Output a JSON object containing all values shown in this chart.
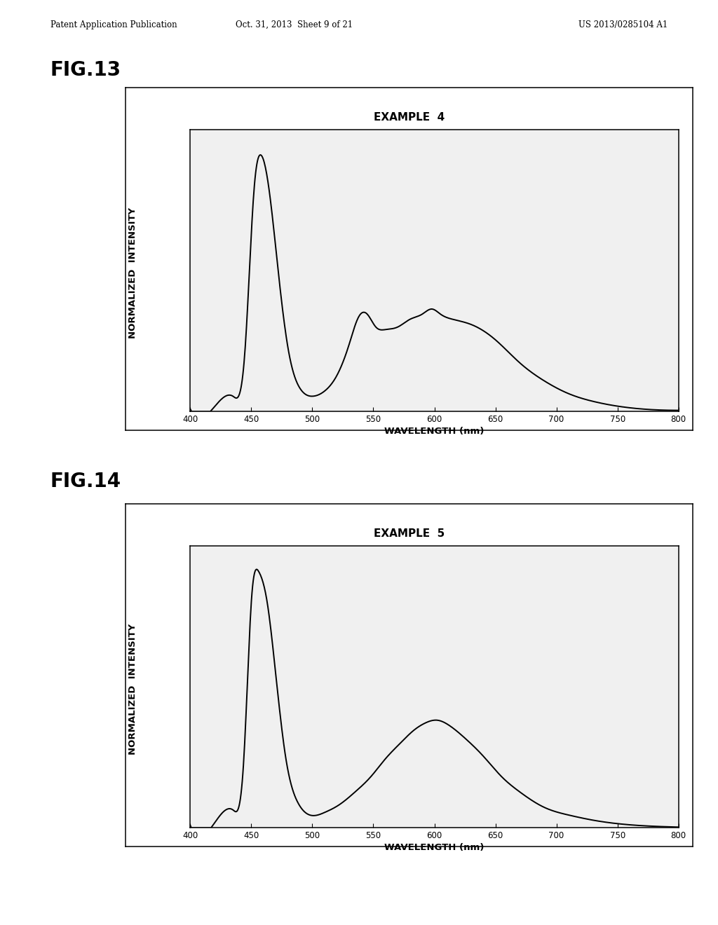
{
  "header_left": "Patent Application Publication",
  "header_center": "Oct. 31, 2013  Sheet 9 of 21",
  "header_right": "US 2013/0285104 A1",
  "fig13_label": "FIG.13",
  "fig14_label": "FIG.14",
  "fig13_title": "EXAMPLE  4",
  "fig14_title": "EXAMPLE  5",
  "xlabel": "WAVELENGTH (nm)",
  "ylabel": "NORMALIZED  INTENSITY",
  "xmin": 400,
  "xmax": 800,
  "xticks": [
    400,
    450,
    500,
    550,
    600,
    650,
    700,
    750,
    800
  ],
  "background_color": "#ffffff",
  "line_color": "#000000",
  "fig13_key_wl": [
    400,
    420,
    435,
    445,
    452,
    458,
    465,
    472,
    480,
    490,
    500,
    510,
    520,
    530,
    538,
    545,
    552,
    560,
    570,
    580,
    590,
    598,
    605,
    615,
    630,
    650,
    670,
    690,
    710,
    730,
    760,
    800
  ],
  "fig13_key_int": [
    0.01,
    0.02,
    0.06,
    0.25,
    0.85,
    1.0,
    0.85,
    0.55,
    0.25,
    0.09,
    0.06,
    0.08,
    0.14,
    0.26,
    0.37,
    0.38,
    0.33,
    0.32,
    0.33,
    0.36,
    0.38,
    0.4,
    0.38,
    0.36,
    0.34,
    0.28,
    0.19,
    0.12,
    0.07,
    0.04,
    0.015,
    0.005
  ],
  "fig14_key_wl": [
    400,
    420,
    435,
    444,
    450,
    456,
    463,
    470,
    478,
    488,
    498,
    510,
    522,
    535,
    548,
    560,
    572,
    583,
    593,
    602,
    612,
    625,
    640,
    655,
    670,
    690,
    710,
    730,
    760,
    800
  ],
  "fig14_key_int": [
    0.01,
    0.02,
    0.07,
    0.28,
    0.88,
    1.0,
    0.88,
    0.6,
    0.28,
    0.1,
    0.05,
    0.06,
    0.09,
    0.14,
    0.2,
    0.27,
    0.33,
    0.38,
    0.41,
    0.42,
    0.4,
    0.35,
    0.28,
    0.2,
    0.14,
    0.08,
    0.05,
    0.03,
    0.012,
    0.003
  ]
}
